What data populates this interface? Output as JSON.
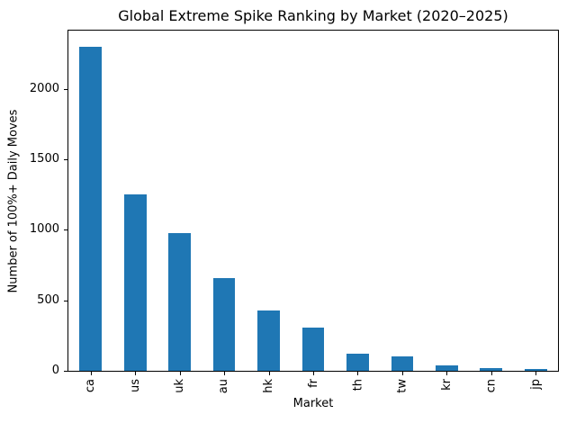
{
  "chart_data": {
    "type": "bar",
    "title": "Global Extreme Spike Ranking by Market (2020–2025)",
    "xlabel": "Market",
    "ylabel": "Number of 100%+ Daily Moves",
    "categories": [
      "ca",
      "us",
      "uk",
      "au",
      "hk",
      "fr",
      "th",
      "tw",
      "kr",
      "cn",
      "jp"
    ],
    "values": [
      2300,
      1250,
      980,
      655,
      425,
      305,
      120,
      100,
      38,
      20,
      15
    ],
    "yticks": [
      0,
      500,
      1000,
      1500,
      2000
    ],
    "ylim": [
      0,
      2415
    ],
    "bar_color": "#1f77b4",
    "axis_color": "#000000",
    "background_color": "#ffffff",
    "grid": false,
    "legend": "none",
    "xtick_rotation": 90
  }
}
